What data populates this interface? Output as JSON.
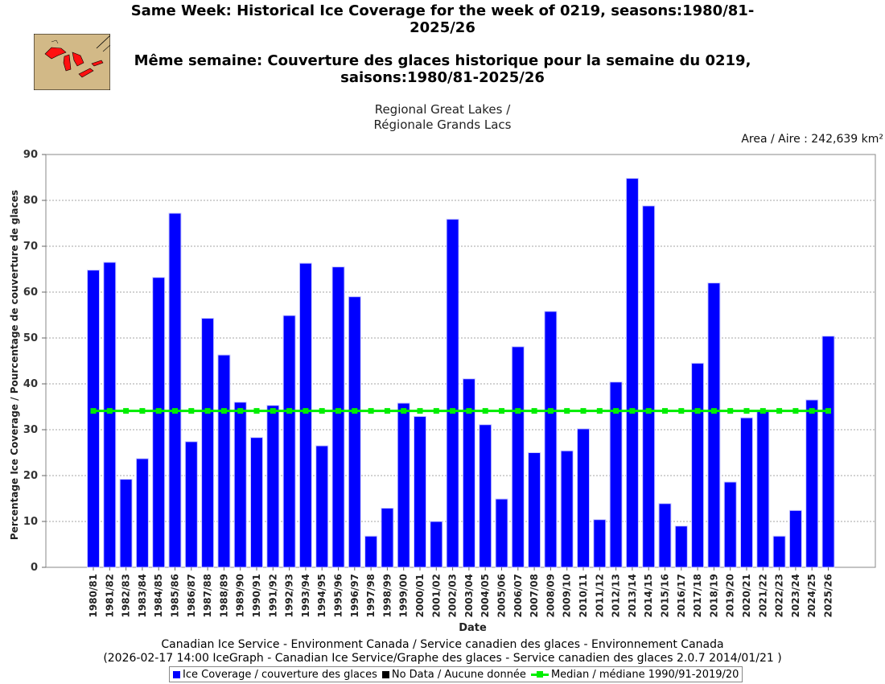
{
  "title_en": "Same Week: Historical Ice Coverage for the week of 0219, seasons:1980/81-2025/26",
  "title_fr": "Même semaine: Couverture des glaces historique pour la semaine du 0219, saisons:1980/81-2025/26",
  "subtitle_1": "Regional Great Lakes /",
  "subtitle_2": "Régionale Grands Lacs",
  "area_label": "Area / Aire : 242,639 km²",
  "footer_line1": "Canadian Ice Service - Environment Canada / Service canadien des glaces - Environnement Canada",
  "footer_line2": "(2026-02-17 14:00 IceGraph - Canadian Ice Service/Graphe des glaces - Service canadien des glaces 2.0.7 2014/01/21 )",
  "legend": {
    "ice": "Ice Coverage / couverture des glaces",
    "nodata": "No Data / Aucune donnée",
    "median": "Median / médiane 1990/91-2019/20"
  },
  "colors": {
    "bar": "#0000ff",
    "nodata": "#000000",
    "median": "#00ee00",
    "grid": "#888888"
  },
  "icons": {
    "map": "great-lakes-map-icon"
  },
  "chart_data": {
    "type": "bar",
    "xlabel": "Date",
    "ylabel": "Percentage Ice Coverage / Pourcentage de couverture de glaces",
    "ylim": [
      0,
      90
    ],
    "yticks": [
      0,
      10,
      20,
      30,
      40,
      50,
      60,
      70,
      80,
      90
    ],
    "grid": true,
    "categories": [
      "1980/81",
      "1981/82",
      "1982/83",
      "1983/84",
      "1984/85",
      "1985/86",
      "1986/87",
      "1987/88",
      "1988/89",
      "1989/90",
      "1990/91",
      "1991/92",
      "1992/93",
      "1993/94",
      "1994/95",
      "1995/96",
      "1996/97",
      "1997/98",
      "1998/99",
      "1999/00",
      "2000/01",
      "2001/02",
      "2002/03",
      "2003/04",
      "2004/05",
      "2005/06",
      "2006/07",
      "2007/08",
      "2008/09",
      "2009/10",
      "2010/11",
      "2011/12",
      "2012/13",
      "2013/14",
      "2014/15",
      "2015/16",
      "2016/17",
      "2017/18",
      "2018/19",
      "2019/20",
      "2020/21",
      "2021/22",
      "2022/23",
      "2023/24",
      "2024/25",
      "2025/26"
    ],
    "series": [
      {
        "name": "Ice Coverage / couverture des glaces",
        "values": [
          64.8,
          66.5,
          19.2,
          23.7,
          63.2,
          77.2,
          27.4,
          54.3,
          46.3,
          36.0,
          28.3,
          35.3,
          54.9,
          66.3,
          26.5,
          65.5,
          59.0,
          6.8,
          12.9,
          35.8,
          32.9,
          10.0,
          75.9,
          41.1,
          31.1,
          14.9,
          48.1,
          25.0,
          55.8,
          25.4,
          30.2,
          10.4,
          40.4,
          84.8,
          78.8,
          13.9,
          9.0,
          44.5,
          62.0,
          18.6,
          32.6,
          34.0,
          6.8,
          12.4,
          36.5,
          50.4
        ]
      },
      {
        "name": "Median / médiane 1990/91-2019/20",
        "value": 34.1
      }
    ]
  }
}
